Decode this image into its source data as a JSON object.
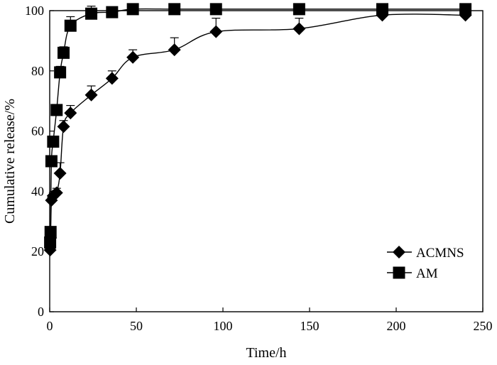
{
  "chart_data": {
    "type": "line",
    "title": "",
    "xlabel": "Time/h",
    "ylabel": "Cumulative release/%",
    "xlim": [
      0,
      250
    ],
    "ylim": [
      0,
      100
    ],
    "xticks": [
      0,
      50,
      100,
      150,
      200,
      250
    ],
    "yticks": [
      0,
      20,
      40,
      60,
      80,
      100
    ],
    "grid": false,
    "legend_position": "bottom-right",
    "series": [
      {
        "name": "ACMNS",
        "marker": "diamond",
        "x": [
          0.25,
          0.5,
          1,
          2,
          4,
          6,
          8,
          12,
          24,
          36,
          48,
          72,
          96,
          144,
          192,
          240
        ],
        "y": [
          20.5,
          24.5,
          37,
          38.5,
          39.5,
          46,
          61.5,
          66,
          72,
          77.5,
          84.5,
          87,
          93,
          94,
          98.5,
          98.5
        ],
        "error": [
          0.5,
          0.5,
          1,
          1,
          1.5,
          3.5,
          2,
          2.5,
          3,
          2.5,
          2.5,
          4,
          4.5,
          3.5,
          1,
          1
        ]
      },
      {
        "name": "AM",
        "marker": "square",
        "x": [
          0.25,
          0.5,
          1,
          2,
          4,
          6,
          8,
          12,
          24,
          36,
          48,
          72,
          96,
          144,
          192,
          240
        ],
        "y": [
          23,
          26.5,
          50,
          56.5,
          67,
          79.5,
          86,
          95,
          99,
          99.5,
          100.5,
          100.5,
          100.5,
          100.5,
          100.5,
          100.5
        ],
        "error": [
          0.5,
          0.5,
          1,
          1,
          1.5,
          2,
          2,
          3,
          2.5,
          1.5,
          1,
          1,
          1,
          1,
          1,
          1
        ]
      }
    ]
  }
}
